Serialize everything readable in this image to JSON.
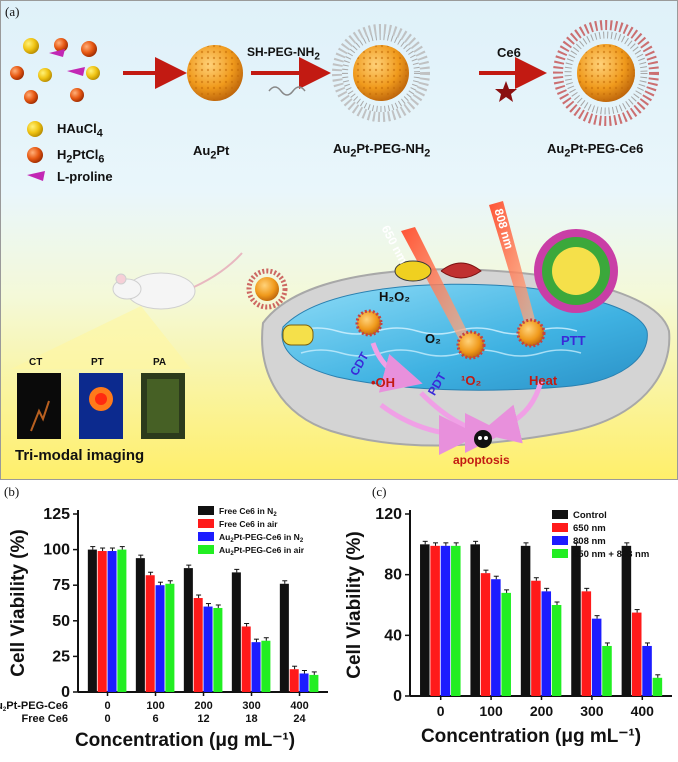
{
  "panel_a": {
    "label": "(a)",
    "legend": [
      {
        "name": "HAuCl",
        "sub": "4",
        "color": "#f2d024"
      },
      {
        "name": "H",
        "sub2": "2",
        "rest": "PtCl",
        "sub": "6",
        "color": "#e0561c"
      },
      {
        "name": "L-proline",
        "color": "#c227b4"
      }
    ],
    "steps": {
      "au2pt": {
        "main": "Au",
        "sub": "2",
        "rest": "Pt"
      },
      "reagent1": {
        "main": "SH-PEG-NH",
        "sub": "2"
      },
      "peg": {
        "main": "Au",
        "sub": "2",
        "rest": "Pt-PEG-NH",
        "sub2": "2"
      },
      "reagent2": "Ce6",
      "final": {
        "main": "Au",
        "sub": "2",
        "rest": "Pt-PEG-Ce6"
      }
    },
    "scene": {
      "laser1": "650 nm",
      "laser2": "808 nm",
      "h2o2": "H₂O₂",
      "o2": "O₂",
      "cdt": "CDT",
      "pdt": "PDT",
      "ptt": "PTT",
      "oh": "•OH",
      "singlet_o2": "¹O₂",
      "heat": "Heat",
      "apoptosis": "apoptosis"
    },
    "imaging": {
      "tiles": [
        "CT",
        "PT",
        "PA"
      ],
      "caption": "Tri-modal imaging"
    },
    "colors": {
      "accent_red": "#b01c12",
      "laser": "#e8552d",
      "water": "#5cc4ea",
      "arrow_pink": "#f0a0e6"
    }
  },
  "chart_data": [
    {
      "label": "(b)",
      "type": "bar",
      "categories": [
        "0",
        "100",
        "200",
        "300",
        "400"
      ],
      "row_labels": {
        "first": {
          "name": "Au2Pt-PEG-Ce6",
          "values": [
            "0",
            "100",
            "200",
            "300",
            "400"
          ]
        },
        "second": {
          "name": "Free Ce6",
          "values": [
            "0",
            "6",
            "12",
            "18",
            "24"
          ]
        }
      },
      "series": [
        {
          "name": "Free Ce6 in N2",
          "color": "#111111",
          "values": [
            100,
            94,
            87,
            84,
            76
          ]
        },
        {
          "name": "Free Ce6 in air",
          "color": "#ff1a1a",
          "values": [
            99,
            82,
            66,
            46,
            16
          ]
        },
        {
          "name": "Au2Pt-PEG-Ce6 in N2",
          "color": "#1c1cff",
          "values": [
            99,
            75,
            60,
            35,
            13
          ]
        },
        {
          "name": "Au2Pt-PEG-Ce6 in air",
          "color": "#22ee22",
          "values": [
            100,
            76,
            59,
            36,
            12
          ]
        }
      ],
      "ylabel": "Cell Viability (%)",
      "xlabel": "Concentration (μg mL⁻¹)",
      "ylim": [
        0,
        125
      ],
      "yticks": [
        "0",
        "25",
        "50",
        "75",
        "100",
        "125"
      ],
      "legend_position": "top-right"
    },
    {
      "label": "(c)",
      "type": "bar",
      "categories": [
        "0",
        "100",
        "200",
        "300",
        "400"
      ],
      "series": [
        {
          "name": "Control",
          "color": "#111111",
          "values": [
            100,
            100,
            99,
            99,
            99
          ]
        },
        {
          "name": "650 nm",
          "color": "#ff1a1a",
          "values": [
            99,
            81,
            76,
            69,
            55
          ]
        },
        {
          "name": "808 nm",
          "color": "#1c1cff",
          "values": [
            99,
            77,
            69,
            51,
            33
          ]
        },
        {
          "name": "650 nm + 808 nm",
          "color": "#22ee22",
          "values": [
            99,
            68,
            60,
            33,
            12
          ]
        }
      ],
      "ylabel": "Cell Viability (%)",
      "xlabel": "Concentration (μg mL⁻¹)",
      "ylim": [
        0,
        120
      ],
      "yticks": [
        "0",
        "40",
        "80",
        "120"
      ],
      "legend_position": "top-right"
    }
  ]
}
